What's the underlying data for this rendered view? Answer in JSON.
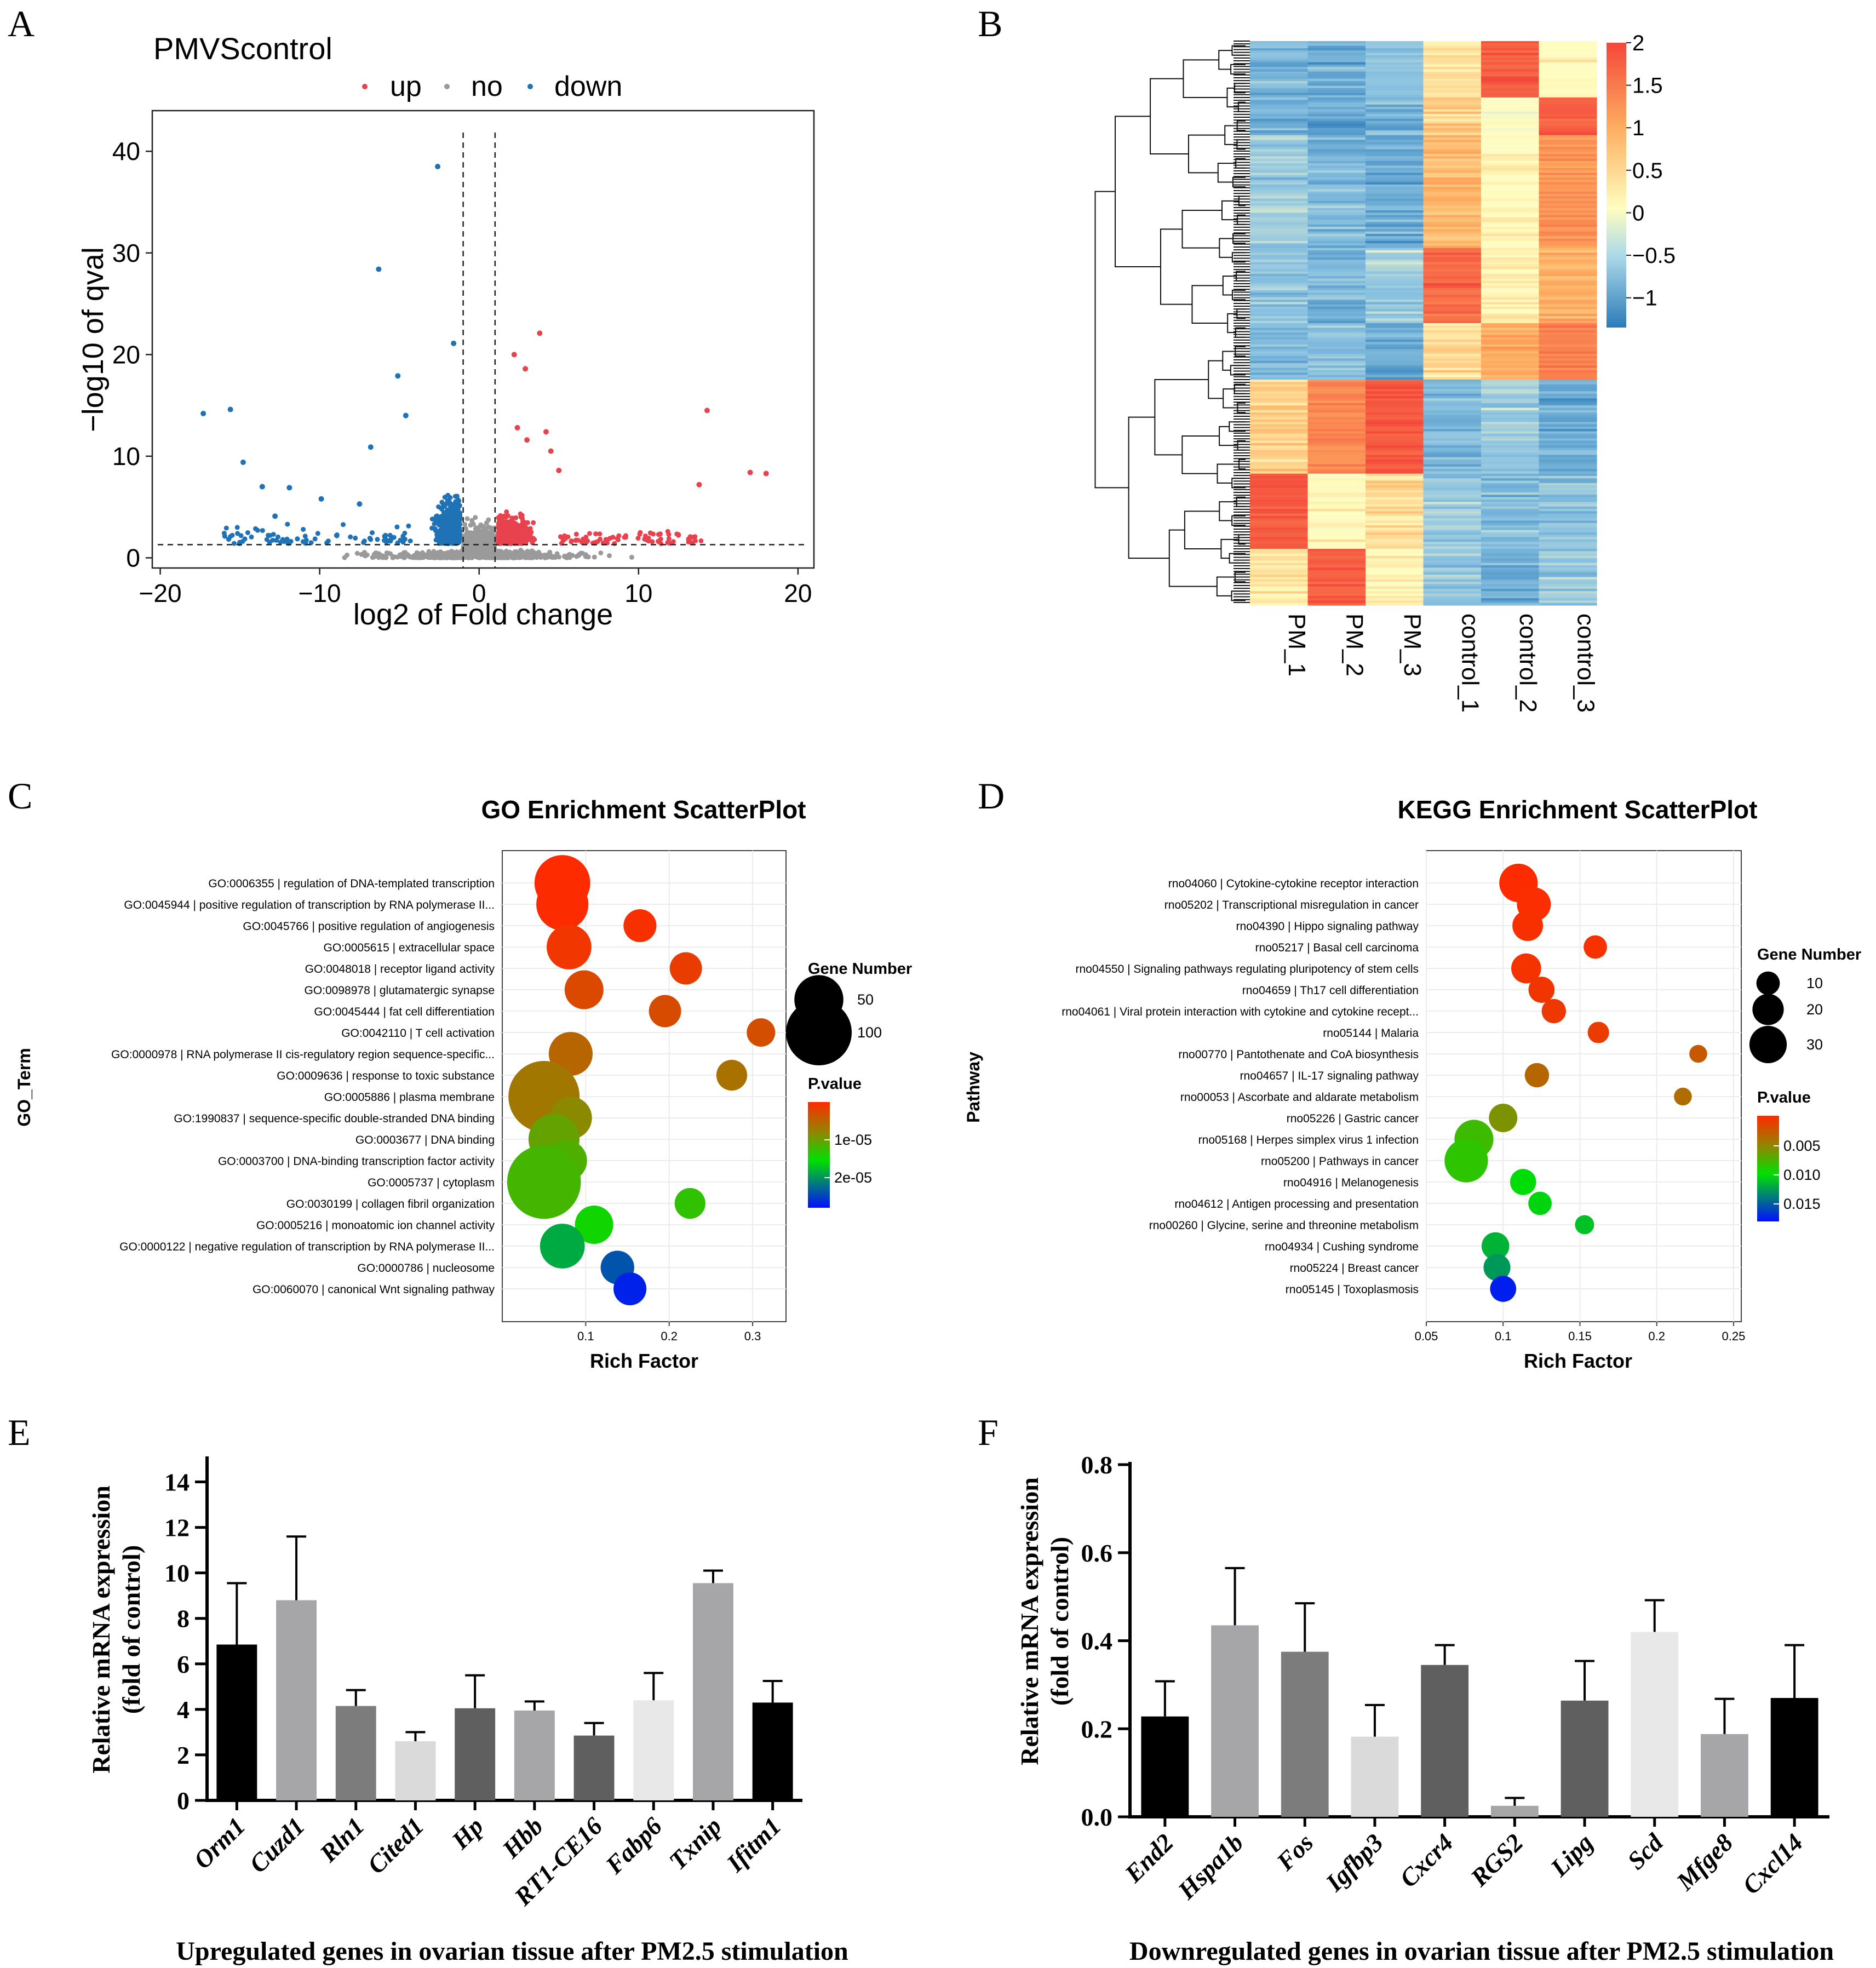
{
  "colors": {
    "up": "#e8424f",
    "no": "#9a9a9a",
    "down": "#1f72b5",
    "heat_low": "#2b7bb9",
    "heat_mid": "#fffdbf",
    "heat_high": "#f4473a",
    "bar_black": "#000000",
    "bar_gray1": "#a6a6a8",
    "bar_gray2": "#7c7c7c",
    "bar_light": "#dadada",
    "bar_dark": "#5f5f5f",
    "bar_lightest": "#e8e8e8"
  },
  "panels": {
    "a": "A",
    "b": "B",
    "c": "C",
    "d": "D",
    "e": "E",
    "f": "F"
  },
  "chart_data": [
    {
      "id": "volcano",
      "type": "scatter",
      "title": "PMVScontrol",
      "legend": [
        "up",
        "no",
        "down"
      ],
      "xlabel": "log2 of Fold change",
      "ylabel": "−log10 of qval",
      "xlim": [
        -20.5,
        21
      ],
      "ylim": [
        -1,
        44
      ],
      "xticks": [
        -20,
        -10,
        0,
        10,
        20
      ],
      "xtick_labels": [
        "−20",
        "−10",
        "0",
        "10",
        "20"
      ],
      "yticks": [
        0,
        10,
        20,
        30,
        40
      ],
      "thresholds": {
        "fc": [
          -1,
          1
        ],
        "q": 1.3
      },
      "up_points": [
        [
          3.8,
          22.1
        ],
        [
          2.2,
          20.0
        ],
        [
          2.9,
          18.6
        ],
        [
          14.3,
          14.5
        ],
        [
          4.2,
          12.4
        ],
        [
          17.0,
          8.4
        ],
        [
          18.0,
          8.3
        ],
        [
          13.8,
          7.2
        ],
        [
          4.5,
          10.5
        ],
        [
          3.0,
          11.6
        ],
        [
          2.4,
          12.8
        ],
        [
          5.0,
          8.6
        ]
      ],
      "down_points": [
        [
          -2.6,
          38.5
        ],
        [
          -6.3,
          28.4
        ],
        [
          -1.6,
          21.1
        ],
        [
          -5.1,
          17.9
        ],
        [
          -15.6,
          14.6
        ],
        [
          -17.3,
          14.2
        ],
        [
          -4.6,
          14.0
        ],
        [
          -14.8,
          9.4
        ],
        [
          -13.6,
          7.0
        ],
        [
          -11.9,
          6.9
        ],
        [
          -9.9,
          5.8
        ],
        [
          -6.8,
          10.9
        ],
        [
          -7.5,
          5.3
        ],
        [
          -12.8,
          4.1
        ]
      ],
      "annotation": "dense cloud of non-significant genes near the origin"
    },
    {
      "id": "heatmap",
      "type": "heatmap",
      "columns": [
        "PM_1",
        "PM_2",
        "PM_3",
        "control_1",
        "control_2",
        "control_3"
      ],
      "colorbar_ticks": [
        "2",
        "1.5",
        "1",
        "0.5",
        "0",
        "−0.5",
        "−1"
      ],
      "colorbar_values": [
        2,
        1.5,
        1,
        0.5,
        0,
        -0.5,
        -1
      ],
      "range": [
        -1.35,
        2.0
      ],
      "blocks": [
        {
          "rows": 6,
          "values": [
            -0.8,
            -0.9,
            -0.7,
            0.4,
            1.8,
            0.2
          ]
        },
        {
          "rows": 4,
          "values": [
            -0.9,
            -1.0,
            -0.8,
            0.6,
            0.1,
            1.8
          ]
        },
        {
          "rows": 12,
          "values": [
            -0.6,
            -0.8,
            -0.9,
            0.8,
            0.2,
            1.2
          ]
        },
        {
          "rows": 8,
          "values": [
            -0.7,
            -0.8,
            -0.6,
            1.6,
            0.3,
            0.9
          ]
        },
        {
          "rows": 6,
          "values": [
            -0.8,
            -0.7,
            -0.9,
            0.5,
            0.9,
            1.4
          ]
        },
        {
          "rows": 10,
          "values": [
            0.6,
            1.3,
            1.8,
            -0.8,
            -0.6,
            -0.9
          ]
        },
        {
          "rows": 8,
          "values": [
            1.8,
            0.2,
            0.5,
            -0.6,
            -0.8,
            -0.7
          ]
        },
        {
          "rows": 6,
          "values": [
            0.4,
            1.8,
            0.3,
            -0.7,
            -0.9,
            -0.6
          ]
        }
      ]
    },
    {
      "id": "go",
      "type": "scatter",
      "title": "GO Enrichment ScatterPlot",
      "xlabel": "Rich Factor",
      "ylabel": "GO_Term",
      "xlim": [
        0,
        0.34
      ],
      "xticks": [
        0.1,
        0.2,
        0.3
      ],
      "size_legend_title": "Gene Number",
      "size_legend": [
        50,
        100
      ],
      "color_legend_title": "P.value",
      "color_legend_labels": [
        "1e-05",
        "2e-05"
      ],
      "color_range": [
        0,
        2.7e-05
      ],
      "terms": [
        "GO:0006355 | regulation of DNA-templated transcription",
        "GO:0045944 | positive regulation of transcription by RNA polymerase II...",
        "GO:0045766 | positive regulation of angiogenesis",
        "GO:0005615 | extracellular space",
        "GO:0048018 | receptor ligand activity",
        "GO:0098978 | glutamatergic synapse",
        "GO:0045444 | fat cell differentiation",
        "GO:0042110 | T cell activation",
        "GO:0000978 | RNA polymerase II cis-regulatory region sequence-specific...",
        "GO:0009636 | response to toxic substance",
        "GO:0005886 | plasma membrane",
        "GO:1990837 | sequence-specific double-stranded DNA binding",
        "GO:0003677 | DNA binding",
        "GO:0003700 | DNA-binding transcription factor activity",
        "GO:0005737 | cytoplasm",
        "GO:0030199 | collagen fibril organization",
        "GO:0005216 | monoatomic ion channel activity",
        "GO:0000122 | negative regulation of transcription by RNA polymerase II...",
        "GO:0000786 | nucleosome",
        "GO:0060070 | canonical Wnt signaling pathway"
      ],
      "rich_factor": [
        0.072,
        0.072,
        0.165,
        0.08,
        0.22,
        0.098,
        0.195,
        0.31,
        0.082,
        0.275,
        0.05,
        0.082,
        0.062,
        0.077,
        0.05,
        0.225,
        0.11,
        0.072,
        0.138,
        0.153
      ],
      "gene_number": [
        68,
        58,
        18,
        40,
        17,
        28,
        17,
        12,
        38,
        15,
        120,
        35,
        55,
        32,
        130,
        15,
        27,
        40,
        19,
        18
      ],
      "p_value": [
        1e-07,
        2e-07,
        5e-07,
        1e-06,
        1.5e-06,
        2.5e-06,
        2.8e-06,
        3e-06,
        5e-06,
        6e-06,
        6.5e-06,
        8e-06,
        1e-05,
        1.1e-05,
        1.15e-05,
        1.25e-05,
        1.4e-05,
        1.8e-05,
        2.3e-05,
        2.6e-05
      ]
    },
    {
      "id": "kegg",
      "type": "scatter",
      "title": "KEGG Enrichment ScatterPlot",
      "xlabel": "Rich Factor",
      "ylabel": "Pathway",
      "xlim": [
        0.05,
        0.255
      ],
      "xticks": [
        0.05,
        0.1,
        0.15,
        0.2,
        0.25
      ],
      "size_legend_title": "Gene Number",
      "size_legend": [
        10,
        20,
        30
      ],
      "color_legend_title": "P.value",
      "color_legend_labels": [
        "0.005",
        "0.010",
        "0.015"
      ],
      "color_range": [
        0,
        0.017
      ],
      "terms": [
        "rno04060 | Cytokine-cytokine receptor interaction",
        "rno05202 | Transcriptional misregulation in cancer",
        "rno04390 | Hippo signaling pathway",
        "rno05217 | Basal cell carcinoma",
        "rno04550 | Signaling pathways regulating pluripotency of stem cells",
        "rno04659 | Th17 cell differentiation",
        "rno04061 | Viral protein interaction with cytokine and cytokine recept...",
        "rno05144 | Malaria",
        "rno00770 | Pantothenate and CoA biosynthesis",
        "rno04657 | IL-17 signaling pathway",
        "rno00053 | Ascorbate and aldarate metabolism",
        "rno05226 | Gastric cancer",
        "rno05168 | Herpes simplex virus 1 infection",
        "rno05200 | Pathways in cancer",
        "rno04916 | Melanogenesis",
        "rno04612 | Antigen processing and presentation",
        "rno00260 | Glycine, serine and threonine metabolism",
        "rno04934 | Cushing syndrome",
        "rno05224 | Breast cancer",
        "rno05145 | Toxoplasmosis"
      ],
      "rich_factor": [
        0.11,
        0.12,
        0.116,
        0.16,
        0.115,
        0.125,
        0.133,
        0.162,
        0.227,
        0.122,
        0.217,
        0.1,
        0.081,
        0.076,
        0.113,
        0.124,
        0.153,
        0.095,
        0.096,
        0.1
      ],
      "gene_number": [
        32,
        24,
        19,
        10,
        18,
        13,
        11,
        8,
        5,
        11,
        5,
        16,
        33,
        42,
        13,
        10,
        6,
        15,
        14,
        13
      ],
      "p_value": [
        0.0001,
        0.0002,
        0.0003,
        0.0004,
        0.0005,
        0.0006,
        0.0008,
        0.0009,
        0.0025,
        0.0032,
        0.0035,
        0.0055,
        0.0075,
        0.008,
        0.0095,
        0.0098,
        0.0105,
        0.011,
        0.012,
        0.0165
      ]
    },
    {
      "id": "up_bars",
      "type": "bar",
      "xlabel": "Upregulated genes in ovarian tissue after PM2.5 stimulation",
      "ylabel": [
        "Relative mRNA expression",
        "(fold of control)"
      ],
      "ylim": [
        0,
        15
      ],
      "yticks": [
        0,
        2,
        4,
        6,
        8,
        10,
        12,
        14
      ],
      "categories": [
        "Orm1",
        "Cuzd1",
        "Rln1",
        "Cited1",
        "Hp",
        "Hbb",
        "RT1-CE16",
        "Fabp6",
        "Txnip",
        "Ifitm1"
      ],
      "values": [
        6.85,
        8.8,
        4.15,
        2.6,
        4.05,
        3.95,
        2.85,
        4.4,
        9.55,
        4.3
      ],
      "errors": [
        2.7,
        2.8,
        0.7,
        0.4,
        1.45,
        0.4,
        0.55,
        1.2,
        0.55,
        0.95
      ],
      "bar_colors": [
        "#000000",
        "#a6a6a8",
        "#7c7c7c",
        "#dadada",
        "#5f5f5f",
        "#a6a6a8",
        "#5f5f5f",
        "#e8e8e8",
        "#a6a6a8",
        "#000000"
      ]
    },
    {
      "id": "down_bars",
      "type": "bar",
      "xlabel": "Downregulated genes in ovarian tissue after PM2.5 stimulation",
      "ylabel": [
        "Relative mRNA expression",
        "(fold of control)"
      ],
      "ylim": [
        0,
        0.8
      ],
      "yticks": [
        0,
        0.2,
        0.4,
        0.6,
        0.8
      ],
      "ytick_labels": [
        "0.0",
        "0.2",
        "0.4",
        "0.6",
        "0.8"
      ],
      "categories": [
        "End2",
        "Hspa1b",
        "Fos",
        "Igfbp3",
        "Cxcr4",
        "RGS2",
        "Lipg",
        "Scd",
        "Mfge8",
        "Cxcl14"
      ],
      "values": [
        0.228,
        0.435,
        0.375,
        0.182,
        0.345,
        0.025,
        0.264,
        0.42,
        0.188,
        0.27
      ],
      "errors": [
        0.08,
        0.13,
        0.11,
        0.072,
        0.045,
        0.018,
        0.09,
        0.072,
        0.08,
        0.12
      ],
      "bar_colors": [
        "#000000",
        "#a6a6a8",
        "#7c7c7c",
        "#dadada",
        "#5f5f5f",
        "#a6a6a8",
        "#5f5f5f",
        "#e8e8e8",
        "#a6a6a8",
        "#000000"
      ]
    }
  ]
}
